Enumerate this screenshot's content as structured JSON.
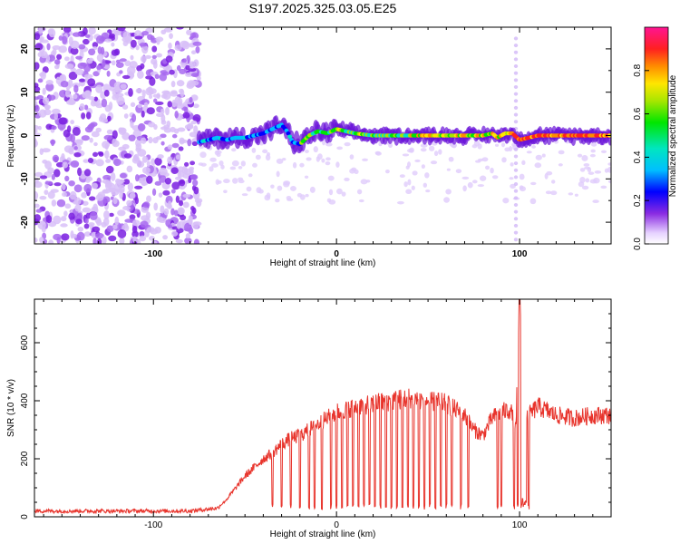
{
  "title": "S197.2025.325.03.05.E25",
  "chart_data": [
    {
      "type": "heatmap",
      "xlabel": "Height of straight line (km)",
      "ylabel": "Frequency (Hz)",
      "xlim": [
        -165,
        150
      ],
      "ylim": [
        -25,
        25
      ],
      "x_ticks": [
        -100,
        0,
        100
      ],
      "x_tick_labels": [
        "-100",
        "0",
        "100"
      ],
      "y_ticks": [
        -20,
        -10,
        0,
        10,
        20
      ],
      "y_tick_labels": [
        "-20",
        "-10",
        "0",
        "10",
        "20"
      ],
      "noise_region_x": [
        -165,
        -75
      ],
      "ridge": {
        "x": [
          -75,
          -70,
          -65,
          -60,
          -55,
          -50,
          -45,
          -40,
          -35,
          -30,
          -27,
          -24,
          -20,
          -15,
          -10,
          -5,
          0,
          5,
          10,
          20,
          30,
          40,
          50,
          60,
          70,
          80,
          85,
          88,
          92,
          96,
          100,
          105,
          110,
          120,
          130,
          140,
          150
        ],
        "y": [
          -1.5,
          -1,
          -0.5,
          -1,
          -0.5,
          -0.5,
          0,
          0.5,
          1.5,
          2.5,
          1,
          -1.5,
          -2,
          0,
          1,
          0.5,
          1.5,
          1,
          0.5,
          0,
          0,
          0,
          0,
          0,
          0,
          0,
          0.5,
          -0.5,
          0.5,
          0.5,
          -1,
          -0.5,
          0,
          0,
          0,
          0,
          0
        ]
      },
      "colorbar": {
        "label": "Normalized spectral amplitude",
        "range": [
          0,
          1
        ],
        "ticks": [
          "0.0",
          "0.2",
          "0.4",
          "0.6",
          "0.8"
        ],
        "tick_values": [
          0,
          0.2,
          0.4,
          0.6,
          0.8
        ]
      }
    },
    {
      "type": "line",
      "xlabel": "Height of straight line (km)",
      "ylabel": "SNR (10 * v/v)",
      "xlim": [
        -165,
        150
      ],
      "ylim": [
        0,
        750
      ],
      "x_ticks": [
        -100,
        0,
        100
      ],
      "x_tick_labels": [
        "-100",
        "0",
        "100"
      ],
      "y_ticks": [
        0,
        200,
        400,
        600
      ],
      "y_tick_labels": [
        "0",
        "200",
        "400",
        "600"
      ],
      "color": "#e8342c",
      "profile": {
        "x": [
          -165,
          -110,
          -80,
          -65,
          -60,
          -55,
          -50,
          -45,
          -40,
          -35,
          -30,
          -25,
          -20,
          -15,
          -10,
          -5,
          0,
          10,
          20,
          30,
          40,
          50,
          60,
          65,
          70,
          75,
          80,
          85,
          90,
          95,
          98,
          100,
          102,
          105,
          110,
          120,
          130,
          140,
          150
        ],
        "snr": [
          20,
          20,
          20,
          30,
          60,
          100,
          140,
          170,
          200,
          220,
          250,
          270,
          280,
          300,
          320,
          340,
          360,
          380,
          390,
          400,
          410,
          400,
          390,
          370,
          350,
          300,
          280,
          340,
          360,
          370,
          300,
          750,
          360,
          350,
          380,
          350,
          340,
          350,
          350
        ]
      },
      "dips": [
        -35,
        -30,
        -25,
        -20,
        -15,
        -12,
        -8,
        -3,
        0,
        3,
        6,
        9,
        12,
        15,
        18,
        21,
        24,
        27,
        30,
        33,
        36,
        39,
        42,
        45,
        48,
        51,
        54,
        57,
        60,
        63,
        68,
        72,
        88,
        90,
        97,
        99,
        101,
        103,
        105
      ]
    }
  ]
}
